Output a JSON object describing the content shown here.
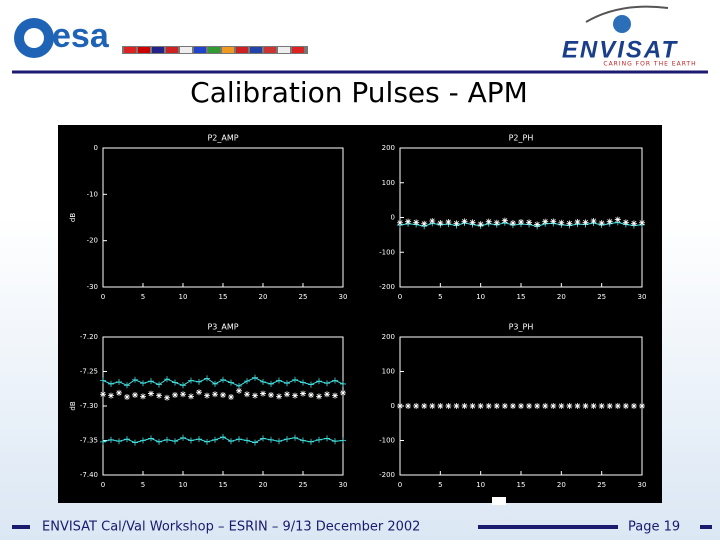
{
  "header": {
    "logo_left": "esa",
    "logo_right": "ENVISAT",
    "tagline": "CARING FOR THE EARTH"
  },
  "title": "Calibration Pulses - APM",
  "footer": {
    "text": "ENVISAT Cal/Val Workshop – ESRIN – 9/13 December 2002",
    "page": "Page 19"
  },
  "chart_data": [
    {
      "type": "line",
      "title": "P2_AMP",
      "ylabel": "dB",
      "x": [
        0,
        1,
        2,
        3,
        4,
        5,
        6,
        7,
        8,
        9,
        10,
        11,
        12,
        13,
        14,
        15,
        16,
        17,
        18,
        19,
        20,
        21,
        22,
        23,
        24,
        25,
        26,
        27,
        28,
        29,
        30
      ],
      "xlim": [
        0,
        30
      ],
      "xticks": [
        0,
        5,
        10,
        15,
        20,
        25,
        30
      ],
      "ylim": [
        -30,
        0
      ],
      "yticks": [
        0,
        -10,
        -20,
        -30
      ],
      "series": []
    },
    {
      "type": "line",
      "title": "P2_PH",
      "x": [
        0,
        1,
        2,
        3,
        4,
        5,
        6,
        7,
        8,
        9,
        10,
        11,
        12,
        13,
        14,
        15,
        16,
        17,
        18,
        19,
        20,
        21,
        22,
        23,
        24,
        25,
        26,
        27,
        28,
        29,
        30
      ],
      "xlim": [
        0,
        30
      ],
      "xticks": [
        0,
        5,
        10,
        15,
        20,
        25,
        30
      ],
      "ylim": [
        -200,
        200
      ],
      "yticks": [
        200,
        100,
        0,
        -100,
        -200
      ],
      "series": [
        {
          "color": "#40e0e0",
          "marker": "plus",
          "line": true,
          "values": [
            -22,
            -18,
            -20,
            -25,
            -17,
            -21,
            -19,
            -23,
            -16,
            -20,
            -24,
            -18,
            -21,
            -15,
            -22,
            -19,
            -20,
            -26,
            -18,
            -17,
            -21,
            -23,
            -19,
            -20,
            -16,
            -22,
            -18,
            -14,
            -20,
            -23,
            -21
          ]
        },
        {
          "color": "#ffffff",
          "marker": "star",
          "line": false,
          "values": [
            -15,
            -12,
            -14,
            -18,
            -10,
            -16,
            -13,
            -17,
            -11,
            -14,
            -19,
            -12,
            -15,
            -9,
            -16,
            -13,
            -14,
            -20,
            -12,
            -11,
            -15,
            -17,
            -13,
            -14,
            -10,
            -16,
            -12,
            -6,
            -14,
            -17,
            -15
          ]
        }
      ]
    },
    {
      "type": "line",
      "title": "P3_AMP",
      "ylabel": "dB",
      "x": [
        0,
        1,
        2,
        3,
        4,
        5,
        6,
        7,
        8,
        9,
        10,
        11,
        12,
        13,
        14,
        15,
        16,
        17,
        18,
        19,
        20,
        21,
        22,
        23,
        24,
        25,
        26,
        27,
        28,
        29,
        30
      ],
      "xlim": [
        0,
        30
      ],
      "xticks": [
        0,
        5,
        10,
        15,
        20,
        25,
        30
      ],
      "ylim": [
        -7.4,
        -7.2
      ],
      "yticks": [
        {
          "value": -7.2,
          "label": "-7.20"
        },
        {
          "value": -7.25,
          "label": "-7.25"
        },
        {
          "value": -7.3,
          "label": "-7.30"
        },
        {
          "value": -7.35,
          "label": "-7.35"
        },
        {
          "value": -7.4,
          "label": "-7.40"
        }
      ],
      "series": [
        {
          "color": "#40e0e0",
          "marker": "plus",
          "line": true,
          "values": [
            -7.263,
            -7.268,
            -7.265,
            -7.27,
            -7.262,
            -7.267,
            -7.264,
            -7.269,
            -7.261,
            -7.266,
            -7.27,
            -7.263,
            -7.265,
            -7.26,
            -7.268,
            -7.262,
            -7.266,
            -7.271,
            -7.264,
            -7.259,
            -7.265,
            -7.268,
            -7.263,
            -7.267,
            -7.262,
            -7.266,
            -7.269,
            -7.264,
            -7.267,
            -7.263,
            -7.268
          ]
        },
        {
          "color": "#ffffff",
          "marker": "star",
          "line": false,
          "values": [
            -7.283,
            -7.285,
            -7.281,
            -7.287,
            -7.284,
            -7.286,
            -7.282,
            -7.285,
            -7.288,
            -7.284,
            -7.283,
            -7.286,
            -7.28,
            -7.285,
            -7.283,
            -7.284,
            -7.287,
            -7.278,
            -7.283,
            -7.285,
            -7.282,
            -7.284,
            -7.286,
            -7.283,
            -7.285,
            -7.282,
            -7.284,
            -7.286,
            -7.283,
            -7.285,
            -7.281
          ]
        },
        {
          "color": "#40e0e0",
          "marker": "plus",
          "line": true,
          "values": [
            -7.352,
            -7.349,
            -7.351,
            -7.348,
            -7.353,
            -7.35,
            -7.347,
            -7.352,
            -7.349,
            -7.351,
            -7.346,
            -7.35,
            -7.348,
            -7.352,
            -7.349,
            -7.345,
            -7.351,
            -7.348,
            -7.35,
            -7.353,
            -7.347,
            -7.349,
            -7.351,
            -7.348,
            -7.346,
            -7.35,
            -7.352,
            -7.349,
            -7.347,
            -7.351,
            -7.35
          ]
        }
      ]
    },
    {
      "type": "line",
      "title": "P3_PH",
      "x": [
        0,
        1,
        2,
        3,
        4,
        5,
        6,
        7,
        8,
        9,
        10,
        11,
        12,
        13,
        14,
        15,
        16,
        17,
        18,
        19,
        20,
        21,
        22,
        23,
        24,
        25,
        26,
        27,
        28,
        29,
        30
      ],
      "xlim": [
        0,
        30
      ],
      "xticks": [
        0,
        5,
        10,
        15,
        20,
        25,
        30
      ],
      "ylim": [
        -200,
        200
      ],
      "yticks": [
        200,
        100,
        0,
        -100,
        -200
      ],
      "series": [
        {
          "color": "#ffffff",
          "marker": "star",
          "line": false,
          "values": [
            0,
            0,
            0,
            0,
            0,
            0,
            0,
            0,
            0,
            0,
            0,
            0,
            0,
            0,
            0,
            0,
            0,
            0,
            0,
            0,
            0,
            0,
            0,
            0,
            0,
            0,
            0,
            0,
            0,
            0,
            0
          ]
        }
      ]
    }
  ]
}
